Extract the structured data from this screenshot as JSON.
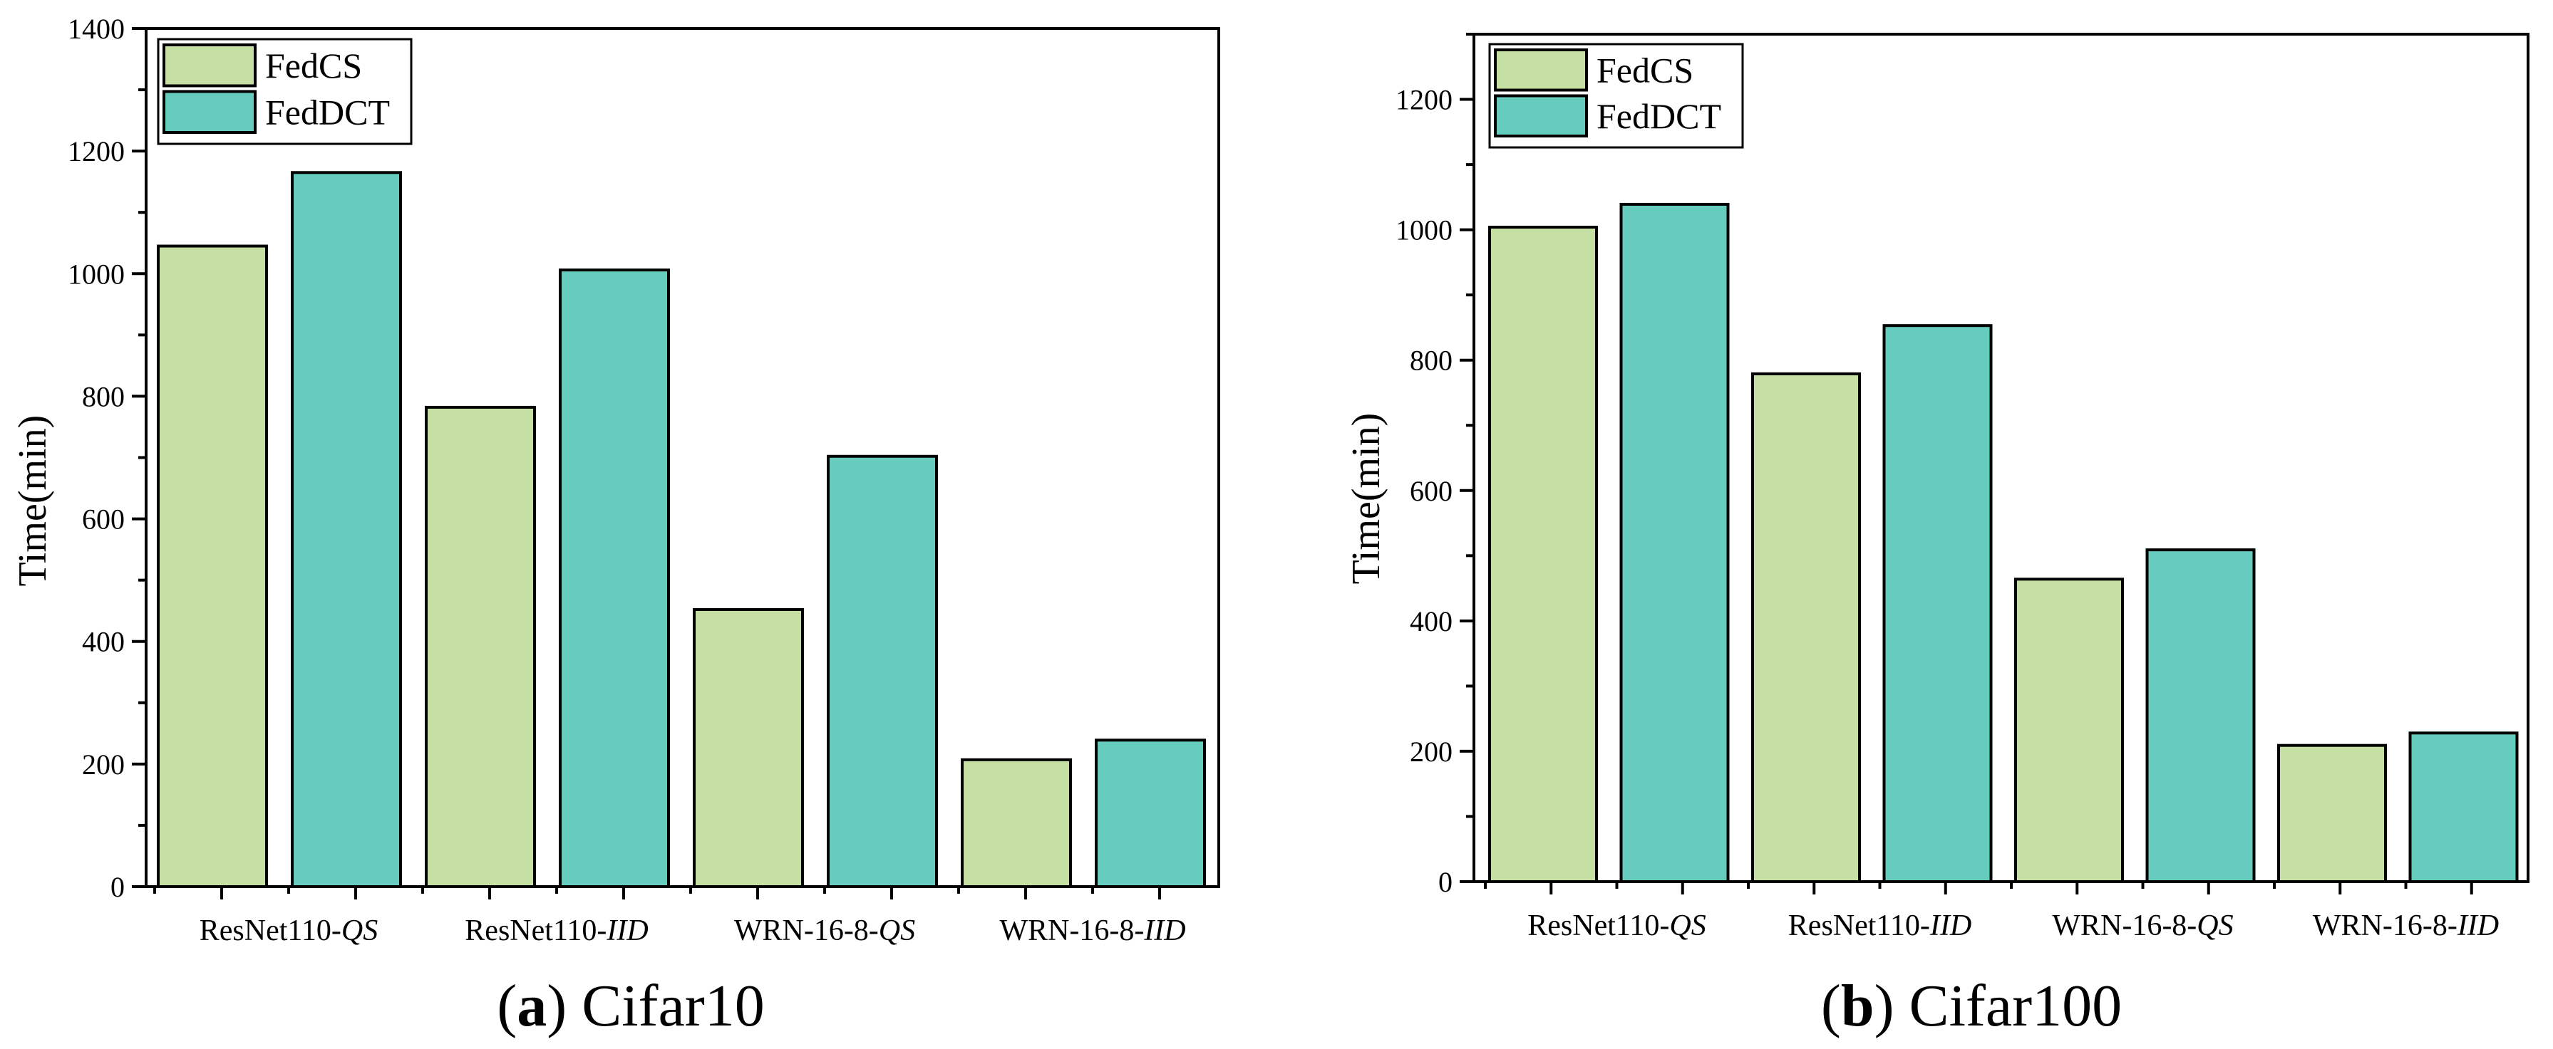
{
  "colors": {
    "fedcs": "#c5e0a2",
    "feddct": "#66cdbe",
    "axis": "#000000",
    "background": "#ffffff"
  },
  "chart_data": [
    {
      "type": "bar",
      "panel_letter": "a",
      "caption": "Cifar10",
      "ylabel": "Time(min)",
      "xlabel": "",
      "ylim": [
        0,
        1400
      ],
      "yticks": [
        0,
        200,
        400,
        600,
        800,
        1000,
        1200,
        1400
      ],
      "grid": false,
      "legend_position": "top-left",
      "categories": [
        {
          "base": "ResNet110-",
          "suffix": "QS"
        },
        {
          "base": "ResNet110-",
          "suffix": "IID"
        },
        {
          "base": "WRN-16-8-",
          "suffix": "QS"
        },
        {
          "base": "WRN-16-8-",
          "suffix": "IID"
        }
      ],
      "series": [
        {
          "name": "FedCS",
          "color": "#c5e0a2",
          "values": [
            1045,
            782,
            452,
            207
          ]
        },
        {
          "name": "FedDCT",
          "color": "#66cdbe",
          "values": [
            1165,
            1006,
            702,
            239
          ]
        }
      ]
    },
    {
      "type": "bar",
      "panel_letter": "b",
      "caption": "Cifar100",
      "ylabel": "Time(min)",
      "xlabel": "",
      "ylim": [
        0,
        1300
      ],
      "yticks": [
        0,
        200,
        400,
        600,
        800,
        1000,
        1200
      ],
      "grid": false,
      "legend_position": "top-left",
      "categories": [
        {
          "base": "ResNet110-",
          "suffix": "QS"
        },
        {
          "base": "ResNet110-",
          "suffix": "IID"
        },
        {
          "base": "WRN-16-8-",
          "suffix": "QS"
        },
        {
          "base": "WRN-16-8-",
          "suffix": "IID"
        }
      ],
      "series": [
        {
          "name": "FedCS",
          "color": "#c5e0a2",
          "values": [
            1004,
            779,
            464,
            209
          ]
        },
        {
          "name": "FedDCT",
          "color": "#66cdbe",
          "values": [
            1039,
            853,
            509,
            228
          ]
        }
      ]
    }
  ]
}
